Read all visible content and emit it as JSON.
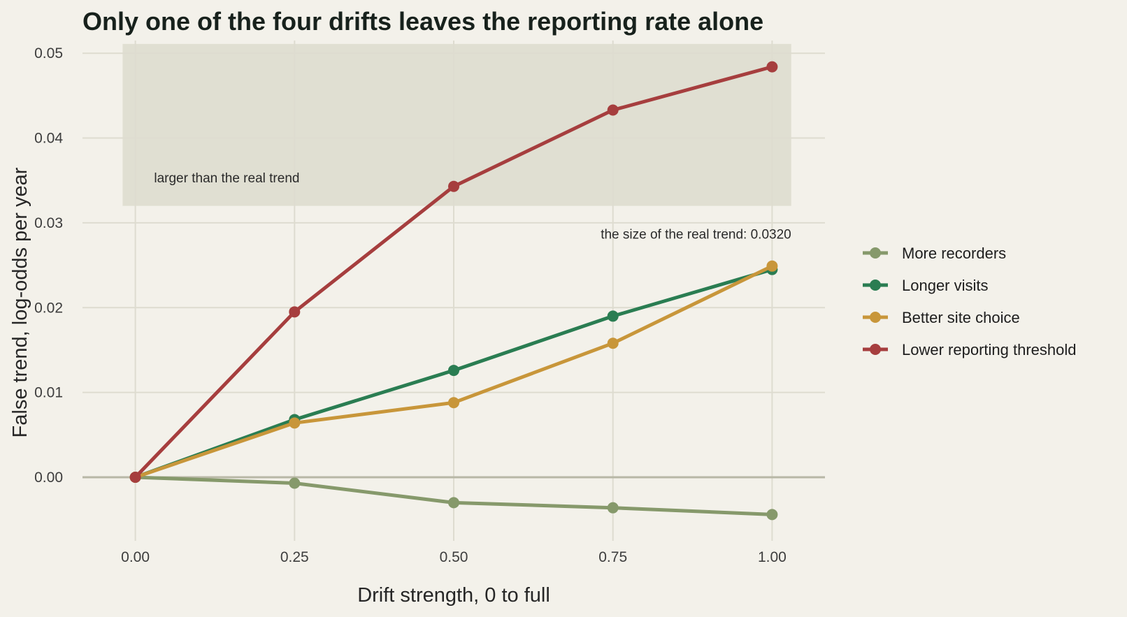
{
  "chart_data": {
    "type": "line",
    "title": "Only one of the four drifts leaves the reporting rate alone",
    "xlabel": "Drift strength, 0 to full",
    "ylabel": "False trend, log-odds per year",
    "x": [
      0,
      0.25,
      0.5,
      0.75,
      1.0
    ],
    "x_tick_labels": [
      "0.00",
      "0.25",
      "0.50",
      "0.75",
      "1.00"
    ],
    "y_ticks": [
      0,
      0.01,
      0.02,
      0.03,
      0.04,
      0.05
    ],
    "y_tick_labels": [
      "0.00",
      "0.01",
      "0.02",
      "0.03",
      "0.04",
      "0.05"
    ],
    "xlim": [
      -0.083,
      1.083
    ],
    "ylim": [
      -0.0075,
      0.0515
    ],
    "grid": true,
    "legend_position": "right",
    "series": [
      {
        "name": "More recorders",
        "color": "#86996b",
        "values": [
          0,
          -0.0007,
          -0.003,
          -0.0036,
          -0.0044
        ]
      },
      {
        "name": "Longer visits",
        "color": "#2a7d52",
        "values": [
          0,
          0.0068,
          0.0126,
          0.019,
          0.0245
        ]
      },
      {
        "name": "Better site choice",
        "color": "#c8963a",
        "values": [
          0,
          0.0064,
          0.0088,
          0.0158,
          0.0249
        ]
      },
      {
        "name": "Lower reporting threshold",
        "color": "#a63e3e",
        "values": [
          0,
          0.0195,
          0.0343,
          0.0433,
          0.0484
        ]
      }
    ],
    "reference_line": {
      "value": 0,
      "color": "#b8b8a6"
    },
    "shaded_region": {
      "x": [
        -0.02,
        1.03
      ],
      "y": [
        0.032,
        0.0511
      ],
      "color": "#e0dfd2",
      "label": "larger than the real trend"
    },
    "annotations": [
      {
        "text": "the size of the real trend: 0.0320",
        "x": 1.03,
        "y": 0.0287
      }
    ]
  }
}
